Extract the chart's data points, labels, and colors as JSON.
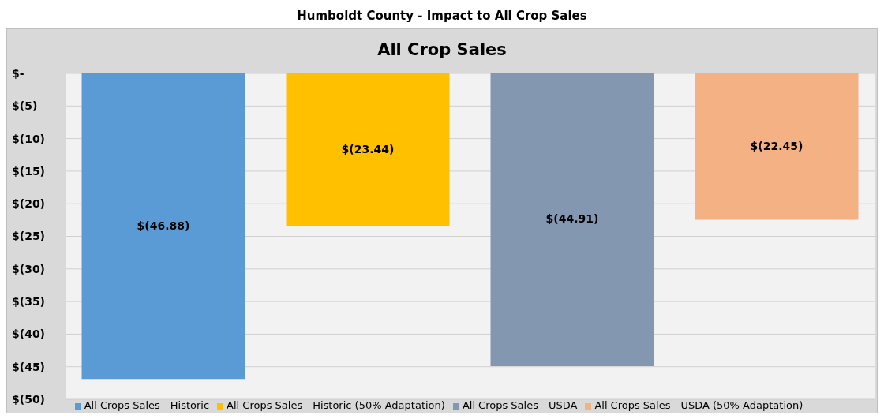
{
  "chart_data": {
    "type": "bar",
    "title": "Humboldt County - Impact to All Crop Sales",
    "subtitle": "All Crop Sales",
    "categories": [
      null
    ],
    "series": [
      {
        "name": "All Crops Sales - Historic",
        "color": "#5b9bd5",
        "values": [
          -46.88
        ],
        "value_labels": [
          "$(46.88)"
        ]
      },
      {
        "name": "All Crops Sales - Historic (50% Adaptation)",
        "color": "#ffc000",
        "values": [
          -23.44
        ],
        "value_labels": [
          "$(23.44)"
        ]
      },
      {
        "name": "All Crops Sales - USDA",
        "color": "#8497b0",
        "values": [
          -44.91
        ],
        "value_labels": [
          "$(44.91)"
        ]
      },
      {
        "name": "All Crops Sales - USDA (50% Adaptation)",
        "color": "#f4b183",
        "values": [
          -22.45
        ],
        "value_labels": [
          "$(22.45)"
        ]
      }
    ],
    "ylim": [
      -50,
      0
    ],
    "yticks": [
      {
        "value": 0,
        "label": "$-"
      },
      {
        "value": -5,
        "label": "$(5)"
      },
      {
        "value": -10,
        "label": "$(10)"
      },
      {
        "value": -15,
        "label": "$(15)"
      },
      {
        "value": -20,
        "label": "$(20)"
      },
      {
        "value": -25,
        "label": "$(25)"
      },
      {
        "value": -30,
        "label": "$(30)"
      },
      {
        "value": -35,
        "label": "$(35)"
      },
      {
        "value": -40,
        "label": "$(40)"
      },
      {
        "value": -45,
        "label": "$(45)"
      },
      {
        "value": -50,
        "label": "$(50)"
      }
    ],
    "grid": "y",
    "legend": "bottom",
    "tick_labels": "y"
  }
}
